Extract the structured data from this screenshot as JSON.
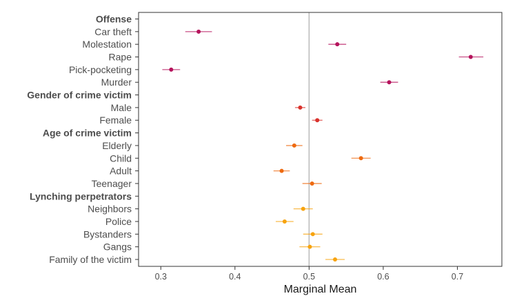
{
  "chart_data": {
    "type": "scatter",
    "xlabel": "Marginal Mean",
    "ylabel": "",
    "xlim": [
      0.27,
      0.76
    ],
    "xticks": [
      0.3,
      0.4,
      0.5,
      0.6,
      0.7
    ],
    "xtick_labels": [
      "0.3",
      "0.4",
      "0.5",
      "0.6",
      "0.7"
    ],
    "reference_line": 0.5,
    "grid": false,
    "rows": [
      {
        "label": "Offense",
        "header": true
      },
      {
        "label": "Car theft",
        "value": 0.351,
        "lower": 0.333,
        "upper": 0.369,
        "color": "#b5135c"
      },
      {
        "label": "Molestation",
        "value": 0.538,
        "lower": 0.526,
        "upper": 0.55,
        "color": "#b5135c"
      },
      {
        "label": "Rape",
        "value": 0.718,
        "lower": 0.702,
        "upper": 0.735,
        "color": "#b5135c"
      },
      {
        "label": "Pick-pocketing",
        "value": 0.314,
        "lower": 0.302,
        "upper": 0.326,
        "color": "#b5135c"
      },
      {
        "label": "Murder",
        "value": 0.608,
        "lower": 0.596,
        "upper": 0.62,
        "color": "#b5135c"
      },
      {
        "label": "Gender of crime victim",
        "header": true
      },
      {
        "label": "Male",
        "value": 0.488,
        "lower": 0.481,
        "upper": 0.495,
        "color": "#d9322c"
      },
      {
        "label": "Female",
        "value": 0.511,
        "lower": 0.504,
        "upper": 0.518,
        "color": "#d9322c"
      },
      {
        "label": "Age of crime victim",
        "header": true
      },
      {
        "label": "Elderly",
        "value": 0.48,
        "lower": 0.469,
        "upper": 0.491,
        "color": "#ee6a10"
      },
      {
        "label": "Child",
        "value": 0.57,
        "lower": 0.557,
        "upper": 0.583,
        "color": "#ee6a10"
      },
      {
        "label": "Adult",
        "value": 0.463,
        "lower": 0.452,
        "upper": 0.474,
        "color": "#ee6a10"
      },
      {
        "label": "Teenager",
        "value": 0.504,
        "lower": 0.491,
        "upper": 0.517,
        "color": "#ee6a10"
      },
      {
        "label": "Lynching perpetrators",
        "header": true
      },
      {
        "label": "Neighbors",
        "value": 0.492,
        "lower": 0.479,
        "upper": 0.505,
        "color": "#f7a30d"
      },
      {
        "label": "Police",
        "value": 0.467,
        "lower": 0.455,
        "upper": 0.479,
        "color": "#f7a30d"
      },
      {
        "label": "Bystanders",
        "value": 0.505,
        "lower": 0.492,
        "upper": 0.518,
        "color": "#f7a30d"
      },
      {
        "label": "Gangs",
        "value": 0.501,
        "lower": 0.487,
        "upper": 0.515,
        "color": "#f7a30d"
      },
      {
        "label": "Family of the victim",
        "value": 0.535,
        "lower": 0.522,
        "upper": 0.548,
        "color": "#f7a30d"
      }
    ]
  }
}
